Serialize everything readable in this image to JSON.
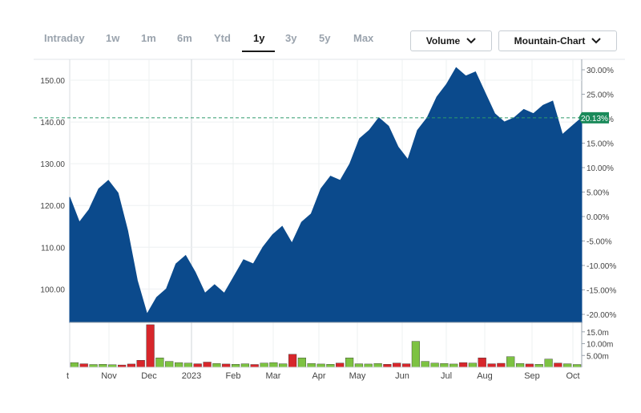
{
  "range_tabs": [
    {
      "label": "Intraday",
      "active": false
    },
    {
      "label": "1w",
      "active": false
    },
    {
      "label": "1m",
      "active": false
    },
    {
      "label": "6m",
      "active": false
    },
    {
      "label": "Ytd",
      "active": false
    },
    {
      "label": "1y",
      "active": true
    },
    {
      "label": "3y",
      "active": false
    },
    {
      "label": "5y",
      "active": false
    },
    {
      "label": "Max",
      "active": false
    }
  ],
  "controls": {
    "volume_label": "Volume",
    "chart_type_label": "Mountain-Chart"
  },
  "colors": {
    "area": "#0b4a8c",
    "up_volume": "#7dc242",
    "down_volume": "#d7262b",
    "reference_line": "#2e9b6b",
    "badge": "#1a8a5a"
  },
  "chart_data": {
    "type": "area",
    "title": "",
    "xlabel": "",
    "ylabel": "",
    "price_axis": {
      "ticks": [
        "100.00",
        "110.00",
        "120.00",
        "130.00",
        "140.00",
        "150.00"
      ],
      "range": [
        92,
        155
      ]
    },
    "percent_axis": {
      "ticks": [
        "-20.00%",
        "-15.00%",
        "-10.00%",
        "-5.00%",
        "0.00%",
        "5.00%",
        "10.00%",
        "15.00%",
        "20.00%",
        "25.00%",
        "30.00%"
      ]
    },
    "volume_axis": {
      "ticks": [
        "5.00m",
        "10.00m",
        "15.0m"
      ],
      "range": [
        0,
        19
      ]
    },
    "x_labels": [
      "t",
      "Nov",
      "Dec",
      "2023",
      "Feb",
      "Mar",
      "Apr",
      "May",
      "Jun",
      "Jul",
      "Aug",
      "Sep",
      "Oct"
    ],
    "current_change": "20.13%",
    "current_price": 141,
    "price_series": [
      122,
      116,
      119,
      124,
      126,
      123,
      114,
      102,
      94,
      98,
      100,
      106,
      108,
      104,
      99,
      101,
      99,
      103,
      107,
      106,
      110,
      113,
      115,
      111,
      116,
      118,
      124,
      127,
      126,
      130,
      136,
      138,
      141,
      139,
      134,
      131,
      138,
      141,
      146,
      149,
      153,
      151,
      152,
      147,
      142,
      140,
      141,
      143,
      142,
      144,
      145,
      137,
      139,
      141
    ],
    "volume_series": [
      2.0,
      1.5,
      1.2,
      1.3,
      1.1,
      1.0,
      1.4,
      3.0,
      18.0,
      4.0,
      2.5,
      2.0,
      1.8,
      1.5,
      2.2,
      1.6,
      1.4,
      1.3,
      1.5,
      1.2,
      1.8,
      2.0,
      1.5,
      5.5,
      4.0,
      1.6,
      1.4,
      1.3,
      1.8,
      4.0,
      1.5,
      1.4,
      1.6,
      1.3,
      1.8,
      1.5,
      11.0,
      2.5,
      1.8,
      1.6,
      1.4,
      2.0,
      1.8,
      4.0,
      1.5,
      1.7,
      4.5,
      1.6,
      1.4,
      1.3,
      3.5,
      1.8,
      1.5,
      1.2
    ]
  }
}
